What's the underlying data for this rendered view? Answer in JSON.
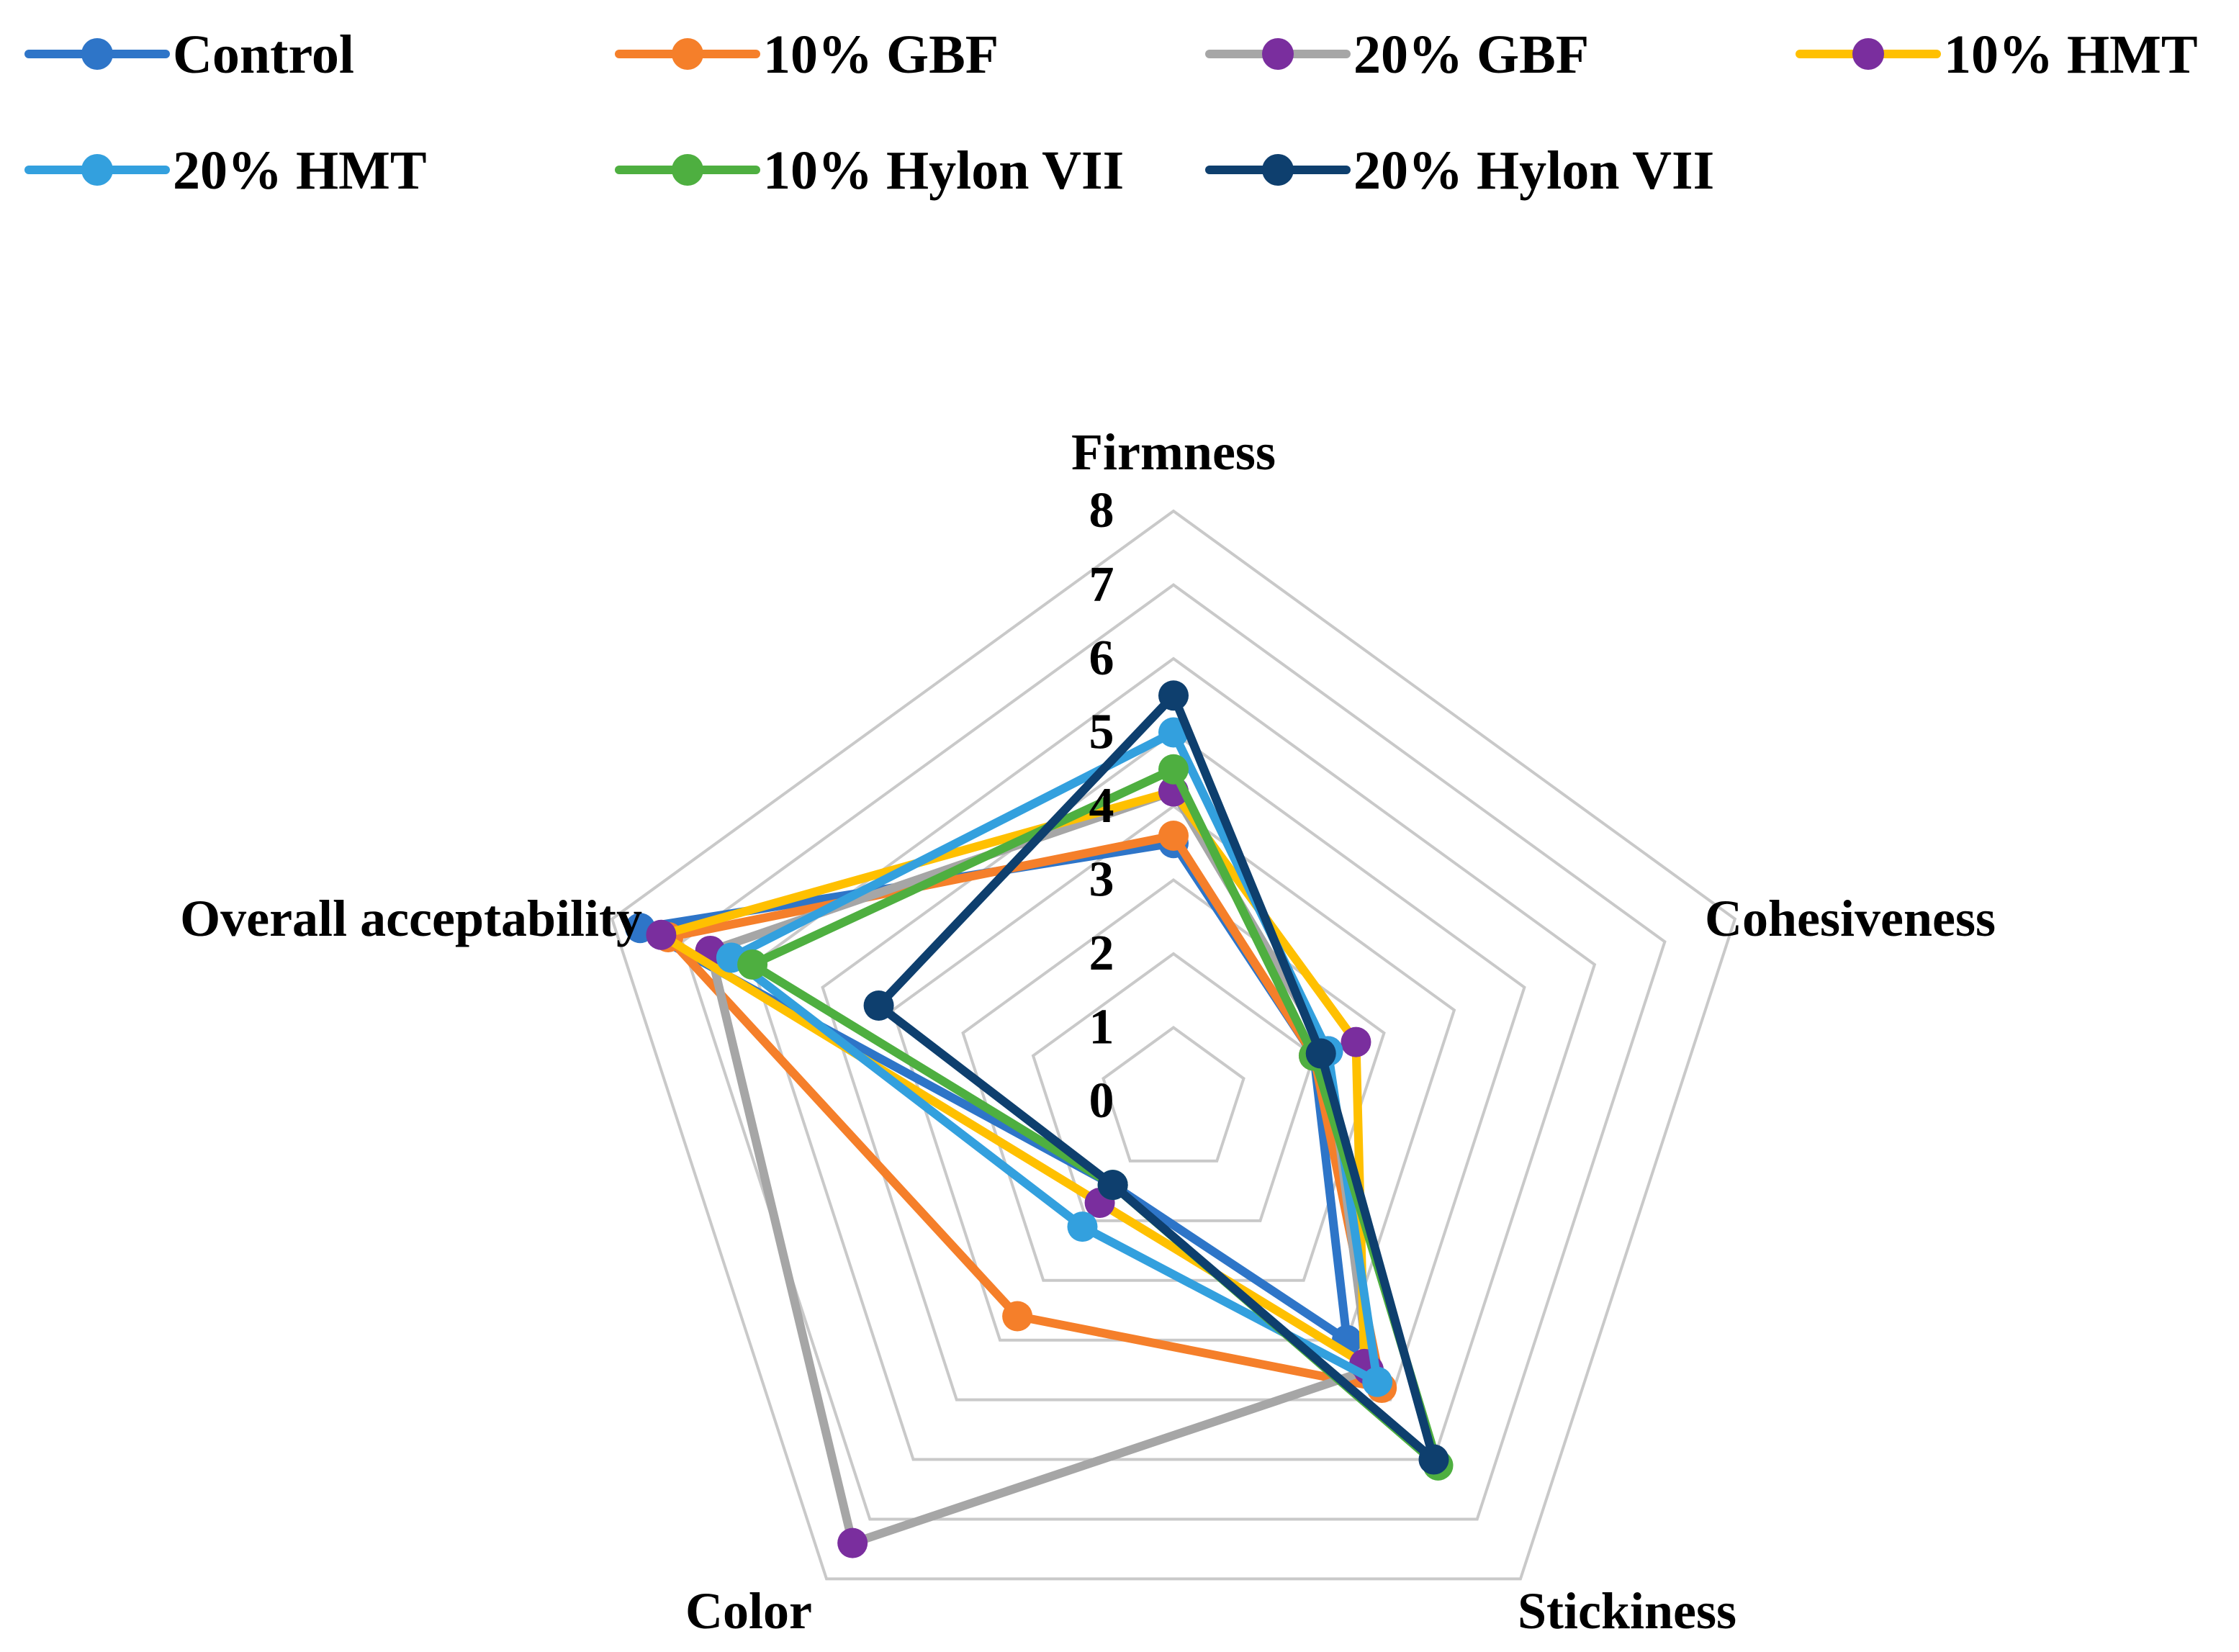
{
  "chart_data": {
    "type": "radar",
    "axes": [
      "Firmness",
      "Cohesiveness",
      "Stickiness",
      "Color",
      "Overall acceptability"
    ],
    "r_range": [
      0,
      8
    ],
    "ticks": [
      "0",
      "1",
      "2",
      "3",
      "4",
      "5",
      "6",
      "7",
      "8"
    ],
    "grid": true,
    "legend_position": "top",
    "series": [
      {
        "name": "Control",
        "color": "#2E75C8",
        "marker_color": "#2E75C8",
        "values": [
          3.5,
          2.0,
          4.0,
          1.4,
          7.6
        ]
      },
      {
        "name": "10% GBF",
        "color": "#F57F2A",
        "marker_color": "#F57F2A",
        "values": [
          3.6,
          2.0,
          4.8,
          3.6,
          7.2
        ]
      },
      {
        "name": "20% GBF",
        "color": "#A6A6A6",
        "marker_color": "#7A2E9E",
        "values": [
          4.2,
          2.2,
          4.5,
          7.4,
          6.6
        ]
      },
      {
        "name": "10% HMT",
        "color": "#FFC000",
        "marker_color": "#7A2E9E",
        "values": [
          4.2,
          2.6,
          4.4,
          1.7,
          7.3
        ]
      },
      {
        "name": "20% HMT",
        "color": "#33A0DE",
        "marker_color": "#33A0DE",
        "values": [
          5.0,
          2.2,
          4.7,
          2.1,
          6.3
        ]
      },
      {
        "name": "10% Hylon VII",
        "color": "#4EAF40",
        "marker_color": "#4EAF40",
        "values": [
          4.5,
          2.0,
          6.1,
          1.4,
          6.0
        ]
      },
      {
        "name": "20% Hylon VII",
        "color": "#0E3F6E",
        "marker_color": "#0E3F6E",
        "values": [
          5.5,
          2.1,
          6.0,
          1.4,
          4.2
        ]
      }
    ]
  }
}
